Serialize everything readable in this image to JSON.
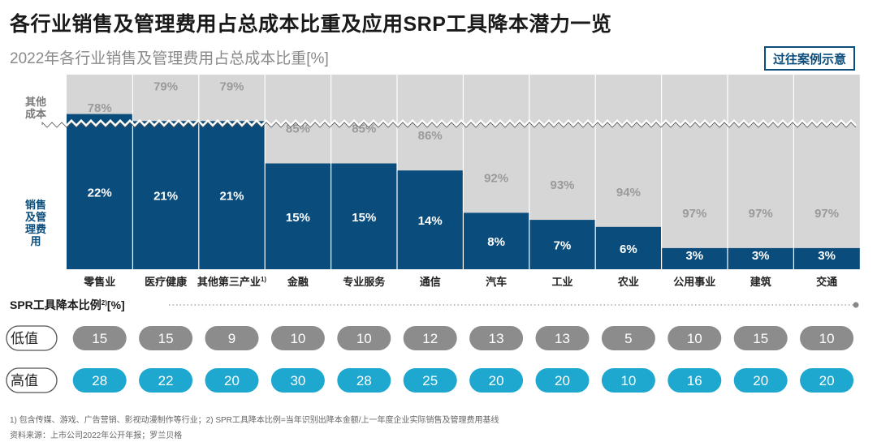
{
  "header": {
    "title": "各行业销售及管理费用占总成本比重及应用SRP工具降本潜力一览",
    "subtitle": "2022年各行业销售及管理费用占总成本比重[%]",
    "case_button": "过往案例示意"
  },
  "chart_data": {
    "type": "bar",
    "title": "2022年各行业销售及管理费用占总成本比重[%]",
    "y_band_labels": {
      "other": "其他成本",
      "sales": "销售及管理费用"
    },
    "categories": [
      "零售业",
      "医疗健康",
      "其他第三产业",
      "金融",
      "专业服务",
      "通信",
      "汽车",
      "工业",
      "农业",
      "公用事业",
      "建筑",
      "交通"
    ],
    "category_footnote_index": 2,
    "category_footnote_mark": "1)",
    "series": [
      {
        "name": "销售及管理费用",
        "values": [
          22,
          21,
          21,
          15,
          15,
          14,
          8,
          7,
          6,
          3,
          3,
          3
        ],
        "color": "#0a4d7c"
      },
      {
        "name": "其他成本",
        "values": [
          78,
          79,
          79,
          85,
          85,
          86,
          92,
          93,
          94,
          97,
          97,
          97
        ],
        "color": "#d6d6d6"
      }
    ],
    "value_suffix": "%",
    "srp": {
      "title": "SPR工具降本比例",
      "title_sup": "2)",
      "title_unit": "[%]",
      "low_label": "低值",
      "high_label": "高值",
      "low": [
        15,
        15,
        9,
        10,
        10,
        12,
        13,
        13,
        5,
        10,
        15,
        10
      ],
      "high": [
        28,
        22,
        20,
        30,
        28,
        25,
        20,
        20,
        10,
        16,
        20,
        20
      ],
      "low_color": "#8c8c8c",
      "high_color": "#1ea8cf"
    }
  },
  "footnotes": {
    "note": "1) 包含传媒、游戏、广告营销、影视动漫制作等行业；2) SPR工具降本比例=当年识别出降本金额/上一年度企业实际销售及管理费用基线",
    "source": "资料来源：上市公司2022年公开年报；罗兰贝格"
  }
}
